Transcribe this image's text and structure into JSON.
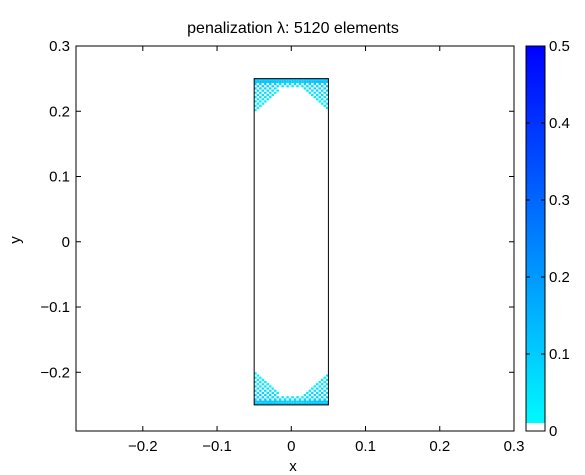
{
  "chart_data": {
    "type": "heatmap",
    "title": "penalization λ: 5120 elements",
    "xlabel": "x",
    "ylabel": "y",
    "xlim": [
      -0.29,
      0.3
    ],
    "ylim": [
      -0.29,
      0.3
    ],
    "xticks": [
      -0.2,
      -0.1,
      0,
      0.1,
      0.2,
      0.3
    ],
    "xtick_labels": [
      "−0.2",
      "−0.1",
      "0",
      "0.1",
      "0.2",
      "0.3"
    ],
    "yticks": [
      -0.2,
      -0.1,
      0,
      0.1,
      0.2,
      0.3
    ],
    "ytick_labels": [
      "−0.2",
      "−0.1",
      "0",
      "0.1",
      "0.2",
      "0.3"
    ],
    "domain_rect": {
      "x": [
        -0.05,
        0.05
      ],
      "y": [
        -0.25,
        0.25
      ]
    },
    "colorbar": {
      "range": [
        0,
        0.5
      ],
      "ticks": [
        0,
        0.1,
        0.2,
        0.3,
        0.4,
        0.5
      ],
      "tick_labels": [
        "0",
        "0.1",
        "0.2",
        "0.3",
        "0.4",
        "0.5"
      ],
      "colors": {
        "low": "#00ffff",
        "high": "#0000ff",
        "zero": "#ffffff"
      }
    },
    "regions": [
      {
        "name": "top-corner-penalty",
        "y_edge": 0.25,
        "x_range": [
          -0.05,
          0.05
        ],
        "v_depth": 0.05,
        "value_range": [
          0.02,
          0.12
        ]
      },
      {
        "name": "bottom-corner-penalty",
        "y_edge": -0.25,
        "x_range": [
          -0.05,
          0.05
        ],
        "v_depth": 0.05,
        "value_range": [
          0.02,
          0.12
        ]
      }
    ],
    "grid": false,
    "legend": "colorbar-right"
  }
}
